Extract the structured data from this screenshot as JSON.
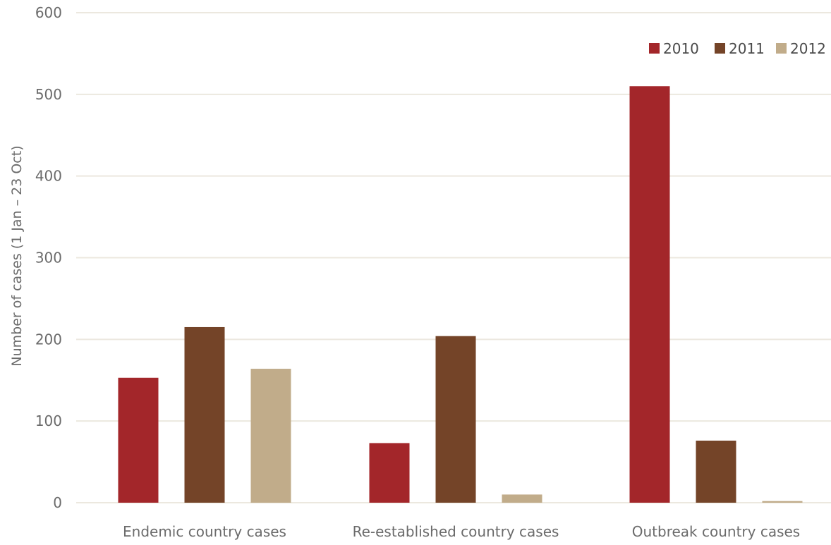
{
  "chart_data": {
    "type": "bar",
    "title": "",
    "xlabel": "",
    "ylabel": "Number of cases (1 Jan – 23 Oct)",
    "categories": [
      "Endemic country cases",
      "Re-established country cases",
      "Outbreak country cases"
    ],
    "series": [
      {
        "name": "2010",
        "color": "#a3262a",
        "values": [
          153,
          73,
          510
        ]
      },
      {
        "name": "2011",
        "color": "#744428",
        "values": [
          215,
          204,
          76
        ]
      },
      {
        "name": "2012",
        "color": "#c1ac8a",
        "values": [
          164,
          10,
          2
        ]
      }
    ],
    "ylim": [
      0,
      600
    ],
    "yticks": [
      0,
      100,
      200,
      300,
      400,
      500,
      600
    ],
    "grid": true,
    "legend_position": "top-right"
  }
}
